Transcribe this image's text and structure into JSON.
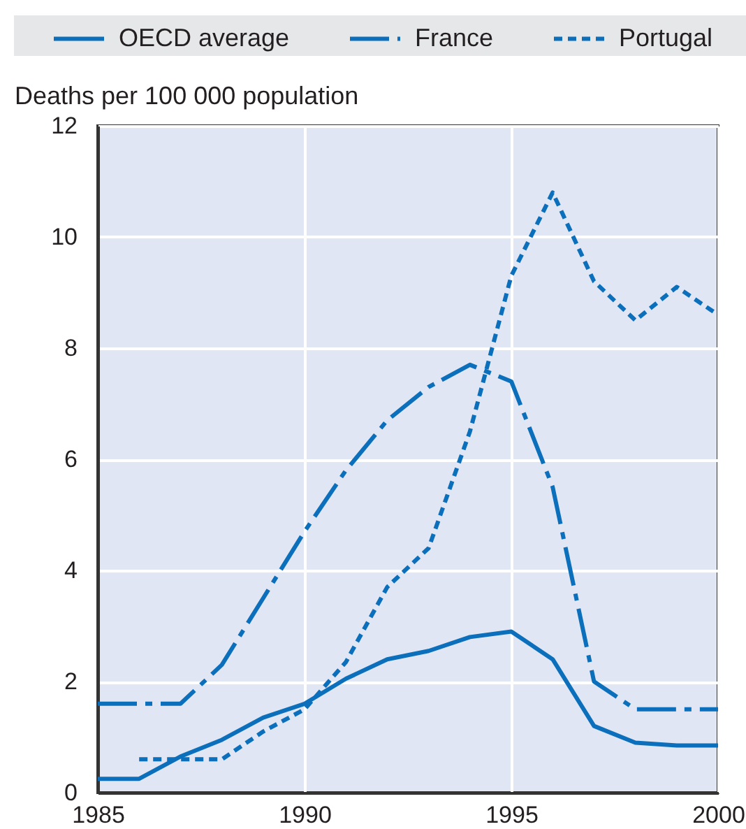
{
  "chart_data": {
    "type": "line",
    "ylabel": "Deaths per 100 000 population",
    "x": [
      1985,
      1986,
      1987,
      1988,
      1989,
      1990,
      1991,
      1992,
      1993,
      1994,
      1995,
      1996,
      1997,
      1998,
      1999,
      2000
    ],
    "xlim": [
      1985,
      2000
    ],
    "xticks": [
      1985,
      1990,
      1995,
      2000
    ],
    "ylim": [
      0,
      12
    ],
    "yticks": [
      0,
      2,
      4,
      6,
      8,
      10,
      12
    ],
    "grid": true,
    "legend": "top",
    "series": [
      {
        "name": "OECD average",
        "color": "#0b6fbb",
        "line_style": "solid",
        "values": [
          0.25,
          0.25,
          0.65,
          0.95,
          1.35,
          1.6,
          2.05,
          2.4,
          2.55,
          2.8,
          2.9,
          2.4,
          1.2,
          0.9,
          0.85,
          0.85
        ]
      },
      {
        "name": "France",
        "color": "#0b6fbb",
        "line_style": "dashdot",
        "values": [
          1.6,
          1.6,
          1.6,
          2.3,
          3.5,
          4.7,
          5.8,
          6.7,
          7.3,
          7.7,
          7.4,
          5.5,
          2.0,
          1.5,
          1.5,
          1.5
        ]
      },
      {
        "name": "Portugal",
        "color": "#0b6fbb",
        "line_style": "dotted",
        "values": [
          null,
          0.6,
          0.6,
          0.6,
          1.1,
          1.5,
          2.35,
          3.7,
          4.4,
          6.5,
          9.3,
          10.8,
          9.2,
          8.5,
          9.1,
          8.6
        ]
      }
    ]
  }
}
